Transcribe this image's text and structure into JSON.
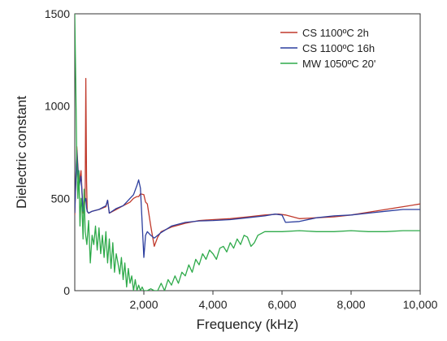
{
  "chart_data": {
    "type": "line",
    "title": "",
    "xlabel": "Frequency (kHz)",
    "ylabel": "Dielectric constant",
    "xlim": [
      0,
      10000
    ],
    "ylim": [
      0,
      1500
    ],
    "x_ticks": [
      2000,
      4000,
      6000,
      8000,
      10000
    ],
    "x_tick_labels": [
      "2,000",
      "4,000",
      "6,000",
      "8,000",
      "10,000"
    ],
    "y_ticks": [
      0,
      500,
      1000,
      1500
    ],
    "y_tick_labels": [
      "0",
      "500",
      "1000",
      "1500"
    ],
    "grid": false,
    "legend_position": "top-right",
    "series": [
      {
        "name": "CS 1100ºC 2h",
        "color": "#c0392b",
        "x": [
          0,
          60,
          120,
          180,
          240,
          280,
          300,
          320,
          340,
          360,
          400,
          500,
          700,
          900,
          950,
          1000,
          1200,
          1400,
          1500,
          1600,
          1700,
          1800,
          1850,
          1900,
          2000,
          2050,
          2100,
          2200,
          2300,
          2400,
          2500,
          2800,
          3200,
          3600,
          4000,
          4500,
          5000,
          5500,
          5900,
          6100,
          6500,
          7000,
          7500,
          8000,
          8500,
          9000,
          9500,
          10000
        ],
        "y": [
          410,
          780,
          580,
          650,
          420,
          460,
          500,
          1150,
          600,
          430,
          420,
          430,
          440,
          455,
          490,
          420,
          440,
          460,
          470,
          480,
          500,
          510,
          510,
          525,
          520,
          480,
          470,
          350,
          240,
          290,
          320,
          345,
          365,
          380,
          385,
          390,
          400,
          410,
          415,
          410,
          390,
          395,
          400,
          410,
          425,
          440,
          455,
          470
        ]
      },
      {
        "name": "CS 1100ºC 16h",
        "color": "#2c3e9e",
        "x": [
          0,
          60,
          120,
          180,
          240,
          280,
          320,
          340,
          360,
          400,
          500,
          700,
          900,
          950,
          1000,
          1200,
          1400,
          1500,
          1600,
          1700,
          1800,
          1850,
          1900,
          2000,
          2050,
          2100,
          2200,
          2300,
          2500,
          2800,
          3200,
          3600,
          4000,
          4500,
          5000,
          5500,
          5800,
          6000,
          6100,
          6500,
          7000,
          7500,
          8000,
          8500,
          9000,
          9500,
          10000
        ],
        "y": [
          420,
          760,
          560,
          620,
          430,
          480,
          500,
          450,
          430,
          420,
          430,
          440,
          460,
          490,
          420,
          445,
          460,
          480,
          500,
          520,
          570,
          600,
          555,
          180,
          300,
          320,
          300,
          285,
          315,
          350,
          370,
          378,
          380,
          385,
          395,
          405,
          415,
          410,
          370,
          375,
          395,
          405,
          410,
          420,
          430,
          440,
          440
        ]
      },
      {
        "name": "MW 1050ºC 20'",
        "color": "#2eaa4a",
        "x": [
          0,
          30,
          60,
          90,
          120,
          150,
          180,
          210,
          240,
          270,
          300,
          350,
          400,
          450,
          500,
          550,
          600,
          650,
          700,
          750,
          800,
          850,
          900,
          950,
          1000,
          1050,
          1100,
          1150,
          1200,
          1250,
          1300,
          1350,
          1400,
          1450,
          1500,
          1550,
          1600,
          1650,
          1700,
          1750,
          1800,
          1850,
          1900,
          1950,
          2000,
          2100,
          2200,
          2300,
          2400,
          2500,
          2600,
          2700,
          2800,
          2900,
          3000,
          3100,
          3200,
          3300,
          3400,
          3500,
          3600,
          3700,
          3800,
          3900,
          4000,
          4100,
          4200,
          4300,
          4400,
          4500,
          4600,
          4700,
          4800,
          4900,
          5000,
          5100,
          5200,
          5300,
          5500,
          5700,
          6000,
          6500,
          7000,
          7500,
          8000,
          8500,
          9000,
          9500,
          10000
        ],
        "y": [
          1500,
          1100,
          700,
          500,
          650,
          350,
          500,
          450,
          280,
          550,
          320,
          250,
          380,
          150,
          300,
          250,
          350,
          220,
          340,
          200,
          300,
          180,
          320,
          150,
          280,
          120,
          260,
          100,
          200,
          150,
          90,
          180,
          60,
          150,
          20,
          120,
          40,
          80,
          0,
          60,
          0,
          30,
          0,
          20,
          0,
          0,
          10,
          0,
          0,
          40,
          0,
          60,
          30,
          80,
          40,
          100,
          80,
          140,
          100,
          170,
          140,
          200,
          170,
          220,
          200,
          170,
          230,
          240,
          210,
          260,
          230,
          280,
          250,
          300,
          290,
          240,
          260,
          300,
          320,
          320,
          320,
          325,
          320,
          320,
          325,
          320,
          320,
          325,
          325
        ]
      }
    ]
  }
}
